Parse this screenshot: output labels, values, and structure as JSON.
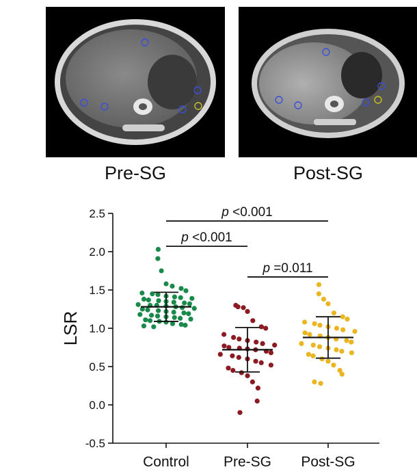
{
  "panels": [
    {
      "label": "Pre-SG"
    },
    {
      "label": "Post-SG"
    }
  ],
  "colors": {
    "control": "#1a8a4a",
    "pre_sg": "#8b1a22",
    "post_sg": "#ebb522",
    "roi": "#3a50d8",
    "roi_spleen": "#c8c020"
  },
  "chart_data": {
    "type": "scatter",
    "ylabel": "LSR",
    "ylim": [
      -0.5,
      2.5
    ],
    "yticks": [
      "2.5",
      "2.0",
      "1.5",
      "1.0",
      "0.5",
      "0.0",
      "-0.5"
    ],
    "ytick_values": [
      2.5,
      2.0,
      1.5,
      1.0,
      0.5,
      0.0,
      -0.5
    ],
    "categories": [
      "Control",
      "Pre-SG",
      "Post-SG"
    ],
    "series": [
      {
        "name": "Control",
        "mean": 1.28,
        "sd_low": 1.09,
        "sd_high": 1.47,
        "values": [
          2.03,
          1.91,
          1.75,
          1.58,
          1.55,
          1.52,
          1.49,
          1.46,
          1.45,
          1.44,
          1.42,
          1.41,
          1.4,
          1.39,
          1.38,
          1.37,
          1.36,
          1.35,
          1.34,
          1.33,
          1.32,
          1.31,
          1.3,
          1.3,
          1.29,
          1.28,
          1.27,
          1.26,
          1.25,
          1.24,
          1.23,
          1.22,
          1.21,
          1.2,
          1.19,
          1.18,
          1.17,
          1.16,
          1.15,
          1.14,
          1.13,
          1.12,
          1.11,
          1.1,
          1.09,
          1.08,
          1.06,
          1.05,
          1.04,
          1.03,
          1.02
        ]
      },
      {
        "name": "Pre-SG",
        "mean": 0.72,
        "sd_low": 0.43,
        "sd_high": 1.01,
        "values": [
          1.3,
          1.28,
          1.27,
          1.22,
          1.1,
          1.02,
          1.0,
          0.92,
          0.88,
          0.86,
          0.84,
          0.82,
          0.8,
          0.78,
          0.77,
          0.75,
          0.74,
          0.73,
          0.72,
          0.7,
          0.68,
          0.66,
          0.64,
          0.62,
          0.6,
          0.57,
          0.55,
          0.52,
          0.48,
          0.45,
          0.42,
          0.38,
          0.3,
          0.22,
          0.05,
          -0.1
        ]
      },
      {
        "name": "Post-SG",
        "mean": 0.88,
        "sd_low": 0.61,
        "sd_high": 1.15,
        "values": [
          1.57,
          1.45,
          1.38,
          1.32,
          1.2,
          1.15,
          1.12,
          1.08,
          1.06,
          1.04,
          1.02,
          1.0,
          0.98,
          0.96,
          0.94,
          0.92,
          0.9,
          0.88,
          0.86,
          0.84,
          0.82,
          0.8,
          0.78,
          0.76,
          0.74,
          0.72,
          0.7,
          0.68,
          0.66,
          0.64,
          0.6,
          0.57,
          0.52,
          0.45,
          0.4,
          0.3,
          0.28
        ]
      }
    ],
    "annotations": [
      {
        "p": "p",
        "text": " <0.001",
        "from": 0,
        "to": 2,
        "y": 2.4
      },
      {
        "p": "p",
        "text": " <0.001",
        "from": 0,
        "to": 1,
        "y": 2.07
      },
      {
        "p": "p",
        "text": " =0.011",
        "from": 1,
        "to": 2,
        "y": 1.67
      }
    ]
  }
}
